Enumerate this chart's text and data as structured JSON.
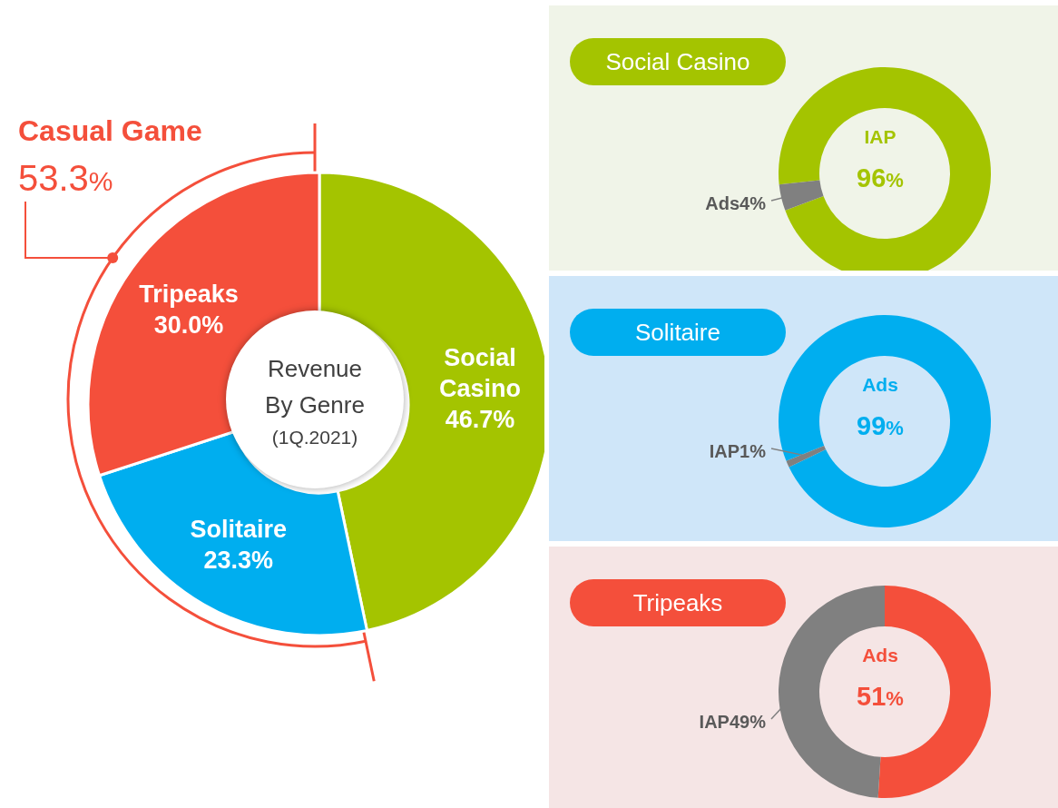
{
  "chart_data": [
    {
      "type": "donut",
      "title": "Revenue By Genre",
      "subtitle": "(1Q.2021)",
      "categories": [
        "Social Casino",
        "Solitaire",
        "Tripeaks"
      ],
      "values": [
        46.7,
        23.3,
        30.0
      ],
      "colors": [
        "#a4c400",
        "#00aeef",
        "#f44f3b"
      ],
      "value_labels": [
        "46.7%",
        "23.3%",
        "30.0%"
      ],
      "annotations": [
        "Casual Game",
        "53.3%"
      ]
    },
    {
      "type": "donut",
      "title": "Social Casino",
      "categories": [
        "IAP",
        "Ads"
      ],
      "values": [
        96,
        4
      ],
      "colors": [
        "#a4c400",
        "#808080"
      ],
      "value_labels": [
        "96%",
        "4%"
      ]
    },
    {
      "type": "donut",
      "title": "Solitaire",
      "categories": [
        "Ads",
        "IAP"
      ],
      "values": [
        99,
        1
      ],
      "colors": [
        "#00aeef",
        "#808080"
      ],
      "value_labels": [
        "99%",
        "1%"
      ]
    },
    {
      "type": "donut",
      "title": "Tripeaks",
      "categories": [
        "Ads",
        "IAP"
      ],
      "values": [
        51,
        49
      ],
      "colors": [
        "#f44f3b",
        "#808080"
      ],
      "value_labels": [
        "51%",
        "49%"
      ]
    }
  ]
}
